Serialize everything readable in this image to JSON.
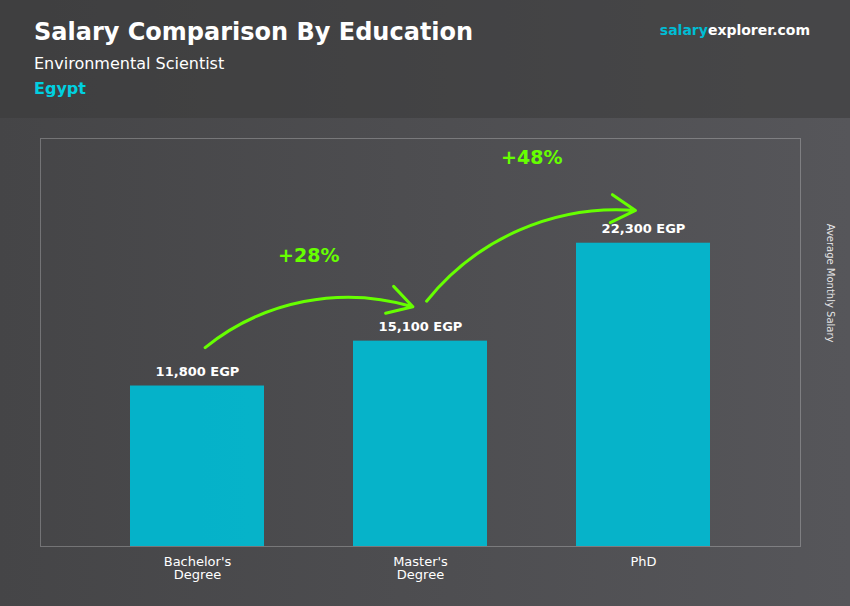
{
  "chart_data": {
    "type": "bar",
    "title": "Salary Comparison By Education",
    "subtitle": "Environmental Scientist",
    "categories": [
      "Bachelor's\nDegree",
      "Master's\nDegree",
      "PhD"
    ],
    "values": [
      11800,
      15100,
      22300
    ],
    "value_labels": [
      "11,800 EGP",
      "15,100 EGP",
      "22,300 EGP"
    ],
    "data_labels": true,
    "color": "#00bcd4",
    "ylabel": "Average Monthly Salary",
    "ylim": [
      0,
      30000
    ],
    "tick_labels": "x",
    "grid": false,
    "annotations": [
      {
        "text": "+28%",
        "from": "Bachelor's\nDegree",
        "to": "Master's\nDegree",
        "color": "#66ff00"
      },
      {
        "text": "+48%",
        "from": "Master's\nDegree",
        "to": "PhD",
        "color": "#66ff00"
      },
      {
        "text": "Egypt",
        "color": "#00d0e0"
      },
      {
        "text": "salary",
        "color": "#00bcd4"
      },
      {
        "text": "explorer.com",
        "color": "#ffffff"
      }
    ]
  }
}
